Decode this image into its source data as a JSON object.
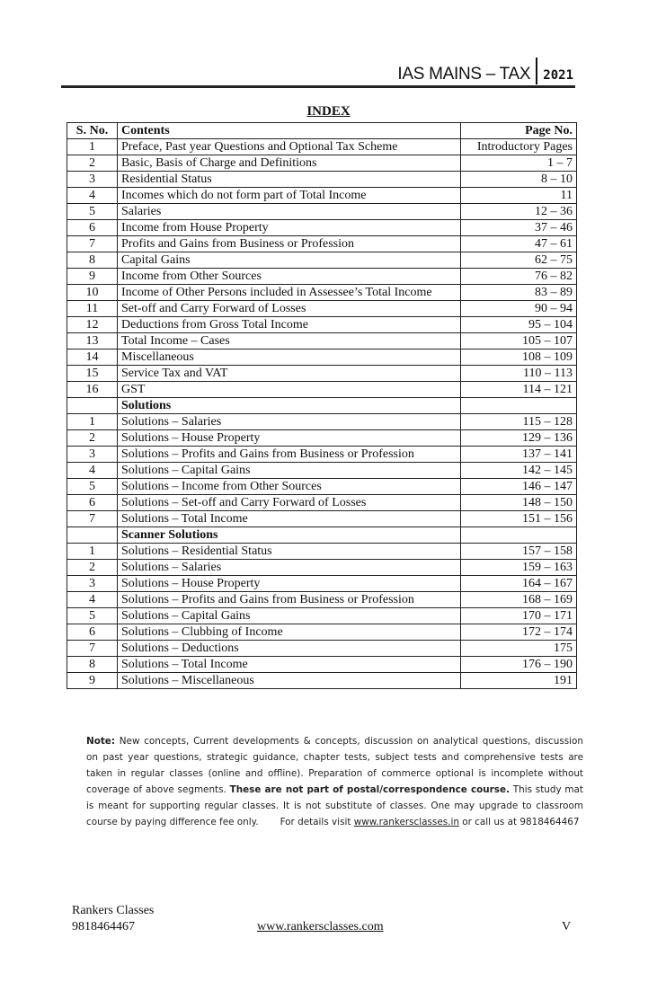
{
  "header": {
    "title": "IAS MAINS – TAX",
    "year": "2021"
  },
  "index_title": "INDEX",
  "columns": [
    "S. No.",
    "Contents",
    "Page No."
  ],
  "rows": [
    {
      "no": "1",
      "content": "Preface, Past year Questions and Optional Tax Scheme",
      "page": "Introductory Pages"
    },
    {
      "no": "2",
      "content": "Basic, Basis of Charge and Definitions",
      "page": "1 – 7"
    },
    {
      "no": "3",
      "content": "Residential Status",
      "page": "8 – 10"
    },
    {
      "no": "4",
      "content": "Incomes which do not form part of Total Income",
      "page": "11"
    },
    {
      "no": "5",
      "content": "Salaries",
      "page": "12 – 36"
    },
    {
      "no": "6",
      "content": "Income from House Property",
      "page": "37 – 46"
    },
    {
      "no": "7",
      "content": "Profits and Gains from Business or Profession",
      "page": "47 – 61"
    },
    {
      "no": "8",
      "content": "Capital Gains",
      "page": "62 – 75"
    },
    {
      "no": "9",
      "content": "Income from Other Sources",
      "page": "76 – 82"
    },
    {
      "no": "10",
      "content": "Income of Other Persons included in Assessee’s Total Income",
      "page": "83 – 89"
    },
    {
      "no": "11",
      "content": "Set-off and Carry Forward of Losses",
      "page": "90 – 94"
    },
    {
      "no": "12",
      "content": "Deductions from Gross Total Income",
      "page": "95 – 104"
    },
    {
      "no": "13",
      "content": "Total Income – Cases",
      "page": "105 – 107"
    },
    {
      "no": "14",
      "content": "Miscellaneous",
      "page": "108 – 109"
    },
    {
      "no": "15",
      "content": "Service Tax and VAT",
      "page": "110 – 113"
    },
    {
      "no": "16",
      "content": "GST",
      "page": "114 – 121"
    },
    {
      "section": "Solutions"
    },
    {
      "no": "1",
      "content": "Solutions – Salaries",
      "page": "115 – 128"
    },
    {
      "no": "2",
      "content": "Solutions – House Property",
      "page": "129 – 136"
    },
    {
      "no": "3",
      "content": "Solutions – Profits and Gains from Business or Profession",
      "page": "137 – 141"
    },
    {
      "no": "4",
      "content": "Solutions – Capital Gains",
      "page": "142 – 145"
    },
    {
      "no": "5",
      "content": "Solutions – Income from Other Sources",
      "page": "146 – 147"
    },
    {
      "no": "6",
      "content": "Solutions – Set-off and Carry Forward of Losses",
      "page": "148 – 150"
    },
    {
      "no": "7",
      "content": "Solutions – Total Income",
      "page": "151 – 156"
    },
    {
      "section": "Scanner Solutions"
    },
    {
      "no": "1",
      "content": "Solutions – Residential Status",
      "page": "157 – 158"
    },
    {
      "no": "2",
      "content": "Solutions – Salaries",
      "page": "159 – 163"
    },
    {
      "no": "3",
      "content": "Solutions – House Property",
      "page": "164 – 167"
    },
    {
      "no": "4",
      "content": "Solutions – Profits and Gains from Business or Profession",
      "page": "168 – 169"
    },
    {
      "no": "5",
      "content": "Solutions – Capital Gains",
      "page": "170 – 171"
    },
    {
      "no": "6",
      "content": "Solutions – Clubbing of Income",
      "page": "172 – 174"
    },
    {
      "no": "7",
      "content": "Solutions – Deductions",
      "page": "175"
    },
    {
      "no": "8",
      "content": "Solutions – Total Income",
      "page": "176 – 190"
    },
    {
      "no": "9",
      "content": "Solutions – Miscellaneous",
      "page": "191"
    }
  ],
  "note": {
    "label": "Note:",
    "text1": " New concepts, Current developments & concepts, discussion on analytical questions, discussion on past year questions, strategic guidance, chapter tests, subject tests and comprehensive tests are taken in regular classes (online and offline). Preparation of commerce optional is incomplete without coverage of above segments. ",
    "bold": "These are not part of postal/correspondence course.",
    "text2": " This study mat is meant for supporting regular classes. It is not substitute of classes. One may upgrade to classroom course by paying difference fee only.",
    "details": "For details  visit ",
    "link": "www.rankersclasses.in",
    "call": " or call us at  9818464467"
  },
  "footer": {
    "org": "Rankers Classes",
    "phone": "9818464467",
    "website": "www.rankersclasses.com",
    "page": "V"
  }
}
